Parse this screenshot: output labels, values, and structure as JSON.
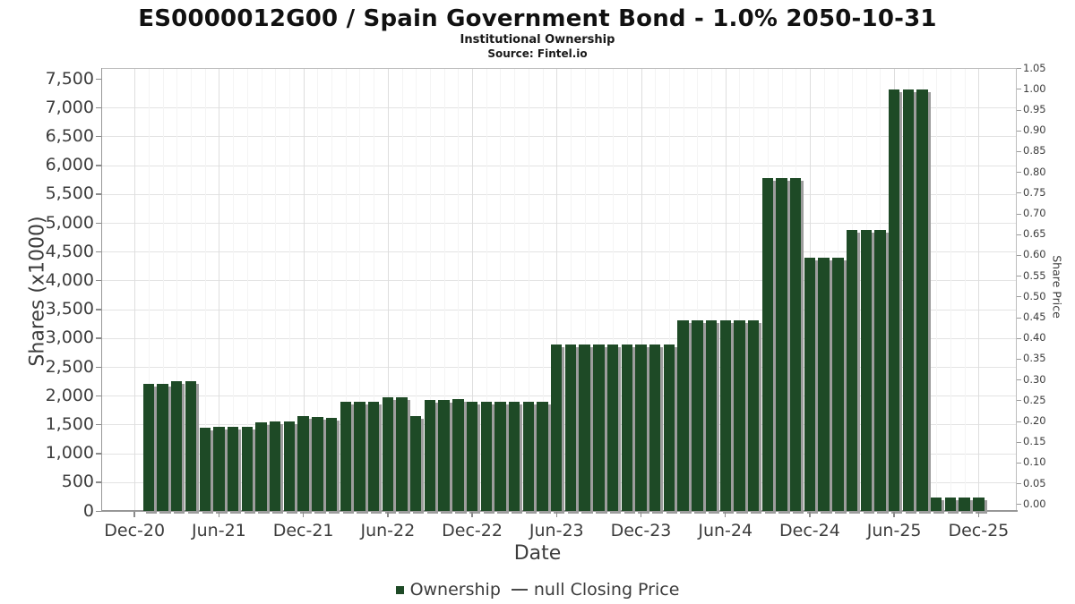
{
  "header": {
    "title": "ES0000012G00 / Spain Government Bond - 1.0% 2050-10-31",
    "subtitle": "Institutional Ownership",
    "source": "Source: Fintel.io"
  },
  "chart_data": {
    "type": "bar",
    "title": "ES0000012G00 / Spain Government Bond - 1.0% 2050-10-31",
    "subtitle": "Institutional Ownership",
    "source": "Source: Fintel.io",
    "xlabel": "Date",
    "ylabel_left": "Shares (x1000)",
    "ylabel_right": "Share Price",
    "x_ticks": [
      "Dec-20",
      "Jun-21",
      "Dec-21",
      "Jun-22",
      "Dec-22",
      "Jun-23",
      "Dec-23",
      "Jun-24",
      "Dec-24",
      "Jun-25",
      "Dec-25"
    ],
    "y_left": {
      "min": 0,
      "max": 7500,
      "step": 500
    },
    "y_right": {
      "min": 0.0,
      "max": 1.05,
      "step": 0.05
    },
    "grid": true,
    "legend_position": "bottom",
    "bar_color": "#1e4a26",
    "bar_shadow_color": "#9d9d9d",
    "series": [
      {
        "name": "Ownership",
        "unit": "shares x1000",
        "months": [
          "Jan-21",
          "Feb-21",
          "Mar-21",
          "Apr-21",
          "May-21",
          "Jun-21",
          "Jul-21",
          "Aug-21",
          "Sep-21",
          "Oct-21",
          "Nov-21",
          "Dec-21",
          "Jan-22",
          "Feb-22",
          "Mar-22",
          "Apr-22",
          "May-22",
          "Jun-22",
          "Jul-22",
          "Aug-22",
          "Sep-22",
          "Oct-22",
          "Nov-22",
          "Dec-22",
          "Jan-23",
          "Feb-23",
          "Mar-23",
          "Apr-23",
          "May-23",
          "Jun-23",
          "Jul-23",
          "Aug-23",
          "Sep-23",
          "Oct-23",
          "Nov-23",
          "Dec-23",
          "Jan-24",
          "Feb-24",
          "Mar-24",
          "Apr-24",
          "May-24",
          "Jun-24",
          "Jul-24",
          "Aug-24",
          "Sep-24",
          "Oct-24",
          "Nov-24",
          "Dec-24",
          "Jan-25",
          "Feb-25",
          "Mar-25",
          "Apr-25",
          "May-25",
          "Jun-25",
          "Jul-25",
          "Aug-25",
          "Sep-25",
          "Oct-25",
          "Nov-25",
          "Dec-25"
        ],
        "values": [
          2200,
          2200,
          2250,
          2250,
          1450,
          1460,
          1460,
          1460,
          1545,
          1555,
          1555,
          1640,
          1635,
          1620,
          1890,
          1900,
          1900,
          1965,
          1965,
          1650,
          1925,
          1925,
          1940,
          1900,
          1900,
          1900,
          1900,
          1900,
          1900,
          2890,
          2890,
          2890,
          2890,
          2890,
          2890,
          2890,
          2890,
          2890,
          3300,
          3300,
          3300,
          3300,
          3300,
          3300,
          5780,
          5780,
          5780,
          4390,
          4390,
          4390,
          4880,
          4880,
          4880,
          7310,
          7310,
          7310,
          230,
          230,
          230,
          230
        ]
      },
      {
        "name": "null Closing Price",
        "unit": "price",
        "values": null
      }
    ]
  },
  "legend": {
    "items": [
      {
        "label": "Ownership",
        "marker": "square",
        "color": "#1e4a26"
      },
      {
        "label": "null Closing Price",
        "marker": "line",
        "color": "#4a4a4a"
      }
    ]
  }
}
